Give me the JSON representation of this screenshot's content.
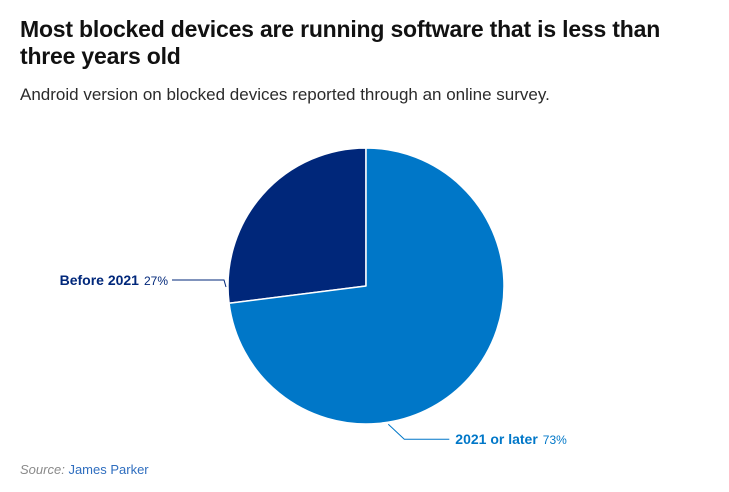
{
  "title": "Most blocked devices are running software that is less than three years old",
  "subtitle": "Android version on blocked devices reported through an online survey.",
  "source": {
    "label": "Source:",
    "value": "James Parker"
  },
  "colors": {
    "dark_navy": "#00277a",
    "blue": "#0077c8",
    "slice_stroke": "#ffffff"
  },
  "chart_data": {
    "type": "pie",
    "title": "Most blocked devices are running software that is less than three years old",
    "subtitle": "Android version on blocked devices reported through an online survey.",
    "start_angle_deg": 0,
    "direction": "counterclockwise",
    "slices": [
      {
        "label": "Before 2021",
        "value": 27,
        "value_label": "27%",
        "color": "#00277a",
        "label_side": "left"
      },
      {
        "label": "2021 or later",
        "value": 73,
        "value_label": "73%",
        "color": "#0077c8",
        "label_side": "right"
      }
    ]
  }
}
